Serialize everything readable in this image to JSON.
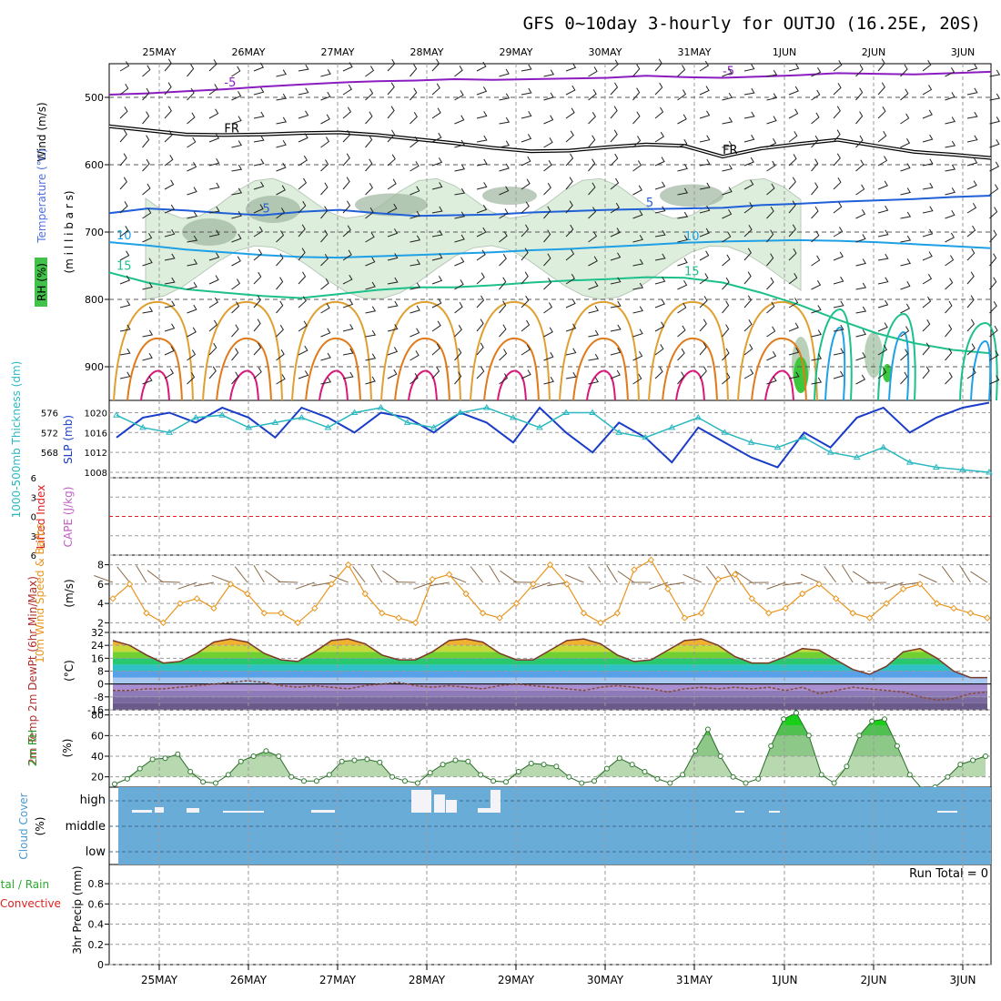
{
  "title": "GFS 0~10day 3-hourly for OUTJO (16.25E, 20S)",
  "run_total": "Run Total = 0",
  "colors": {
    "purple": "#8a1cc0",
    "black": "#000000",
    "blue": "#1f5fd8",
    "cyan": "#1ea0e6",
    "teal": "#1cc08a",
    "orange": "#e08a1a",
    "magenta": "#d8187a",
    "rhgreen": "#3c8c3c",
    "slp": "#1a3cc8",
    "thick": "#2ab8c0",
    "wind": "#e8951e",
    "cloud": "#6aacd8",
    "rhfill": "#3cc83c",
    "lifted": "#e02020",
    "cape": "#c060c0"
  },
  "chart_data": [
    {
      "type": "line",
      "panel": "upper-air",
      "ylabel_parts": [
        "Wind (m/s)",
        "Temperature (°C)",
        "RH (%)"
      ],
      "yaxis_label": "(m i l l i b a r s)",
      "yticks": [
        500,
        600,
        700,
        800,
        900
      ],
      "ylim": [
        450,
        950
      ],
      "xticks": [
        "25MAY",
        "26MAY",
        "27MAY",
        "28MAY",
        "29MAY",
        "30MAY",
        "31MAY",
        "1JUN",
        "2JUN",
        "3JUN"
      ],
      "contours": [
        {
          "name": "-5°C",
          "label": "-5",
          "color": "purple",
          "values": [
            496,
            494,
            491,
            488,
            484,
            481,
            478,
            476,
            475,
            473,
            474,
            473,
            472,
            471,
            468,
            470,
            471,
            469,
            467,
            464,
            465,
            466,
            464,
            462
          ]
        },
        {
          "name": "freezing level",
          "label": "FR",
          "color": "black",
          "values": [
            543,
            549,
            555,
            556,
            555,
            553,
            552,
            556,
            562,
            568,
            575,
            580,
            579,
            574,
            570,
            572,
            588,
            576,
            569,
            563,
            572,
            581,
            585,
            590
          ]
        },
        {
          "name": "5°C",
          "label": "5",
          "color": "blue",
          "values": [
            672,
            665,
            668,
            672,
            675,
            670,
            667,
            672,
            676,
            675,
            674,
            671,
            669,
            667,
            666,
            665,
            664,
            660,
            658,
            655,
            653,
            651,
            648,
            646
          ]
        },
        {
          "name": "10°C",
          "label": "10",
          "color": "cyan",
          "values": [
            715,
            720,
            726,
            730,
            734,
            737,
            738,
            736,
            734,
            732,
            730,
            727,
            725,
            722,
            719,
            716,
            714,
            713,
            712,
            713,
            715,
            718,
            721,
            724
          ]
        },
        {
          "name": "15°C",
          "label": "15",
          "color": "teal",
          "values": [
            760,
            775,
            785,
            790,
            795,
            798,
            792,
            786,
            782,
            782,
            779,
            775,
            772,
            770,
            767,
            768,
            775,
            790,
            808,
            830,
            850,
            865,
            875,
            880
          ]
        }
      ]
    },
    {
      "type": "line",
      "panel": "slp-thickness",
      "ylabel_left": "1000-500mb Thickness (dm)",
      "ylabel_right": "SLP (mb)",
      "yticks_left": [
        568,
        572,
        576
      ],
      "yticks_right": [
        1008,
        1012,
        1016,
        1020
      ],
      "series": [
        {
          "name": "SLP",
          "color": "slp",
          "values": [
            1015,
            1019,
            1020,
            1018,
            1021,
            1019,
            1015,
            1021,
            1019,
            1016,
            1020,
            1019,
            1016,
            1020,
            1018,
            1014,
            1021,
            1016,
            1012,
            1018,
            1015,
            1010,
            1017,
            1014,
            1011,
            1009,
            1016,
            1013,
            1019,
            1021,
            1016,
            1019,
            1021,
            1022
          ]
        },
        {
          "name": "Thickness",
          "color": "thick",
          "values": [
            575.5,
            573,
            572,
            575,
            575.5,
            573,
            574,
            575,
            573,
            576,
            577,
            574,
            573,
            576,
            577,
            575,
            573,
            576,
            576,
            572,
            571,
            573,
            575,
            572,
            570,
            569,
            571,
            568,
            567,
            569,
            566,
            565,
            564.5,
            564
          ]
        }
      ]
    },
    {
      "type": "line",
      "panel": "stability",
      "ylabel_left": "Lifted Index",
      "ylabel_right": "CAPE (J/kg)",
      "yticks": [
        -6,
        -3,
        0,
        3,
        6
      ],
      "ylim": [
        -6,
        6
      ],
      "series": [
        {
          "name": "Lifted Index",
          "color": "lifted",
          "values": []
        }
      ]
    },
    {
      "type": "line",
      "panel": "10m-wind",
      "ylabel": "10m Wind Speed & Barbs",
      "unit": "(m/s)",
      "yticks": [
        2,
        4,
        6,
        8
      ],
      "ylim": [
        1,
        9
      ],
      "series": [
        {
          "name": "Speed",
          "color": "wind",
          "values": [
            4.5,
            6,
            3,
            2,
            4,
            4.5,
            3.5,
            6,
            5,
            3,
            3,
            2,
            3.5,
            6,
            8,
            5,
            3,
            2.5,
            2,
            6.5,
            7,
            5,
            3,
            2.5,
            4,
            6,
            8,
            6,
            3,
            2,
            3,
            7.5,
            8.5,
            5.5,
            2.5,
            3,
            6.5,
            7,
            4.5,
            3,
            3.5,
            5,
            6,
            4.5,
            3,
            2.5,
            4,
            5.5,
            6,
            4,
            3.5,
            3,
            2.5
          ]
        }
      ]
    },
    {
      "type": "area",
      "panel": "2m-temp",
      "ylabel": "2m Temp 2m DewPt (6hr Min/Max)",
      "unit": "(°C)",
      "yticks": [
        -16,
        -8,
        0,
        8,
        16,
        24,
        32
      ],
      "ylim": [
        -16,
        32
      ],
      "series": [
        {
          "name": "Temperature",
          "values": [
            27,
            24,
            18,
            13,
            14,
            19,
            26,
            28,
            26,
            19,
            15,
            14,
            20,
            27,
            28,
            25,
            18,
            15,
            15,
            20,
            27,
            28,
            26,
            19,
            15,
            15,
            21,
            27,
            28,
            25,
            18,
            14,
            15,
            21,
            27,
            28,
            24,
            17,
            13,
            13,
            17,
            22,
            21,
            15,
            9,
            6,
            11,
            20,
            22,
            16,
            8,
            4,
            4
          ]
        },
        {
          "name": "Dew Point",
          "values": [
            -4,
            -4,
            -3,
            -3,
            -2,
            -1,
            0,
            1,
            2,
            1,
            -1,
            -2,
            -1,
            -2,
            -3,
            -1,
            0,
            1,
            -1,
            -2,
            -1,
            -2,
            -3,
            -1,
            0,
            -1,
            -2,
            -3,
            -4,
            -2,
            -1,
            -2,
            -3,
            -5,
            -3,
            -2,
            -3,
            -2,
            -3,
            -2,
            -4,
            -2,
            -6,
            -4,
            -2,
            -3,
            -4,
            -5,
            -8,
            -10,
            -9,
            -6,
            -5
          ]
        }
      ]
    },
    {
      "type": "area",
      "panel": "2m-rh",
      "ylabel": "2m RH",
      "unit": "(%)",
      "yticks": [
        20,
        40,
        60,
        80
      ],
      "ylim": [
        10,
        85
      ],
      "series": [
        {
          "name": "RH",
          "values": [
            13,
            18,
            28,
            37,
            38,
            42,
            25,
            15,
            14,
            22,
            35,
            40,
            45,
            40,
            20,
            16,
            16,
            22,
            35,
            36,
            37,
            34,
            20,
            16,
            14,
            24,
            32,
            36,
            35,
            22,
            16,
            15,
            25,
            33,
            32,
            30,
            20,
            14,
            16,
            28,
            38,
            32,
            25,
            18,
            14,
            22,
            45,
            66,
            40,
            20,
            14,
            18,
            50,
            76,
            82,
            60,
            22,
            14,
            30,
            60,
            74,
            76,
            50,
            22,
            8,
            10,
            20,
            32,
            36,
            40
          ]
        }
      ]
    },
    {
      "type": "bar",
      "panel": "cloud-cover",
      "ylabel": "Cloud Cover",
      "unit": "(%)",
      "yticks": [
        "high",
        "middle",
        "low"
      ]
    },
    {
      "type": "bar",
      "panel": "precip",
      "ylabel_parts": [
        "Total / Rain",
        "Convective",
        "3hr Precip (mm)"
      ],
      "yticks": [
        0,
        0.2,
        0.4,
        0.6,
        0.8
      ],
      "ylim": [
        0,
        1
      ],
      "xticks": [
        "25MAY",
        "26MAY",
        "27MAY",
        "28MAY",
        "29MAY",
        "30MAY",
        "31MAY",
        "1JUN",
        "2JUN",
        "3JUN"
      ],
      "series": [
        {
          "name": "3hr Precip",
          "values": []
        }
      ]
    }
  ]
}
